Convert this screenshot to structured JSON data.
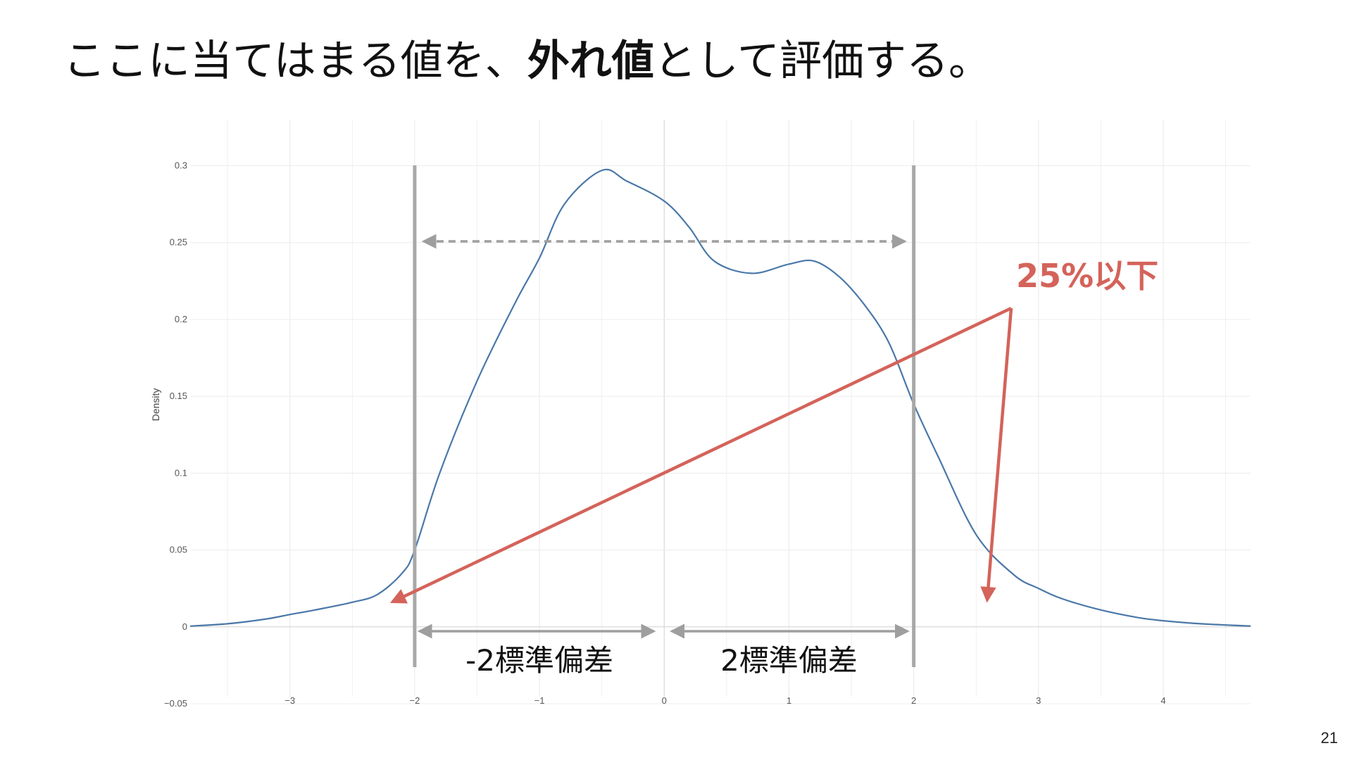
{
  "slide": {
    "title_pre": "ここに当てはまる値を、",
    "title_bold": "外れ値",
    "title_post": "として評価する。",
    "page_number": "21"
  },
  "annotations": {
    "left_span_label": "-2標準偏差",
    "right_span_label": "2標準偏差",
    "percent_label": "25%以下"
  },
  "colors": {
    "curve": "#4a78a8",
    "bound_lines": "#a8a8a8",
    "dashed_arrow": "#9e9e9e",
    "red_annotation": "#d4635a",
    "grid": "#ececec"
  },
  "chart_data": {
    "type": "line",
    "title": "",
    "xlabel": "",
    "ylabel": "Density",
    "xlim": [
      -3.8,
      4.7
    ],
    "ylim": [
      -0.05,
      0.33
    ],
    "x_ticks": [
      -3,
      -2,
      -1,
      0,
      1,
      2,
      3,
      4
    ],
    "x_tick_labels": [
      "−3",
      "−2",
      "−1",
      "0",
      "1",
      "2",
      "3",
      "4"
    ],
    "y_ticks": [
      -0.05,
      0,
      0.05,
      0.1,
      0.15,
      0.2,
      0.25,
      0.3
    ],
    "y_tick_labels": [
      "−0.05",
      "0",
      "0.05",
      "0.1",
      "0.15",
      "0.2",
      "0.25",
      "0.3"
    ],
    "grid": true,
    "bounds": [
      -2,
      2
    ],
    "series": [
      {
        "x": [
          -3.8,
          -3.5,
          -3.2,
          -3.0,
          -2.8,
          -2.5,
          -2.3,
          -2.1,
          -2.0,
          -1.8,
          -1.5,
          -1.2,
          -1.0,
          -0.8,
          -0.5,
          -0.3,
          0.0,
          0.2,
          0.4,
          0.7,
          1.0,
          1.2,
          1.4,
          1.6,
          1.8,
          2.0,
          2.2,
          2.5,
          2.8,
          3.0,
          3.2,
          3.5,
          3.8,
          4.0,
          4.3,
          4.7
        ],
        "y": [
          0.0005,
          0.002,
          0.005,
          0.008,
          0.011,
          0.016,
          0.021,
          0.035,
          0.05,
          0.1,
          0.16,
          0.21,
          0.24,
          0.275,
          0.297,
          0.29,
          0.277,
          0.26,
          0.238,
          0.23,
          0.236,
          0.238,
          0.228,
          0.21,
          0.185,
          0.145,
          0.11,
          0.06,
          0.034,
          0.025,
          0.018,
          0.011,
          0.006,
          0.004,
          0.002,
          0.0005
        ]
      }
    ]
  }
}
